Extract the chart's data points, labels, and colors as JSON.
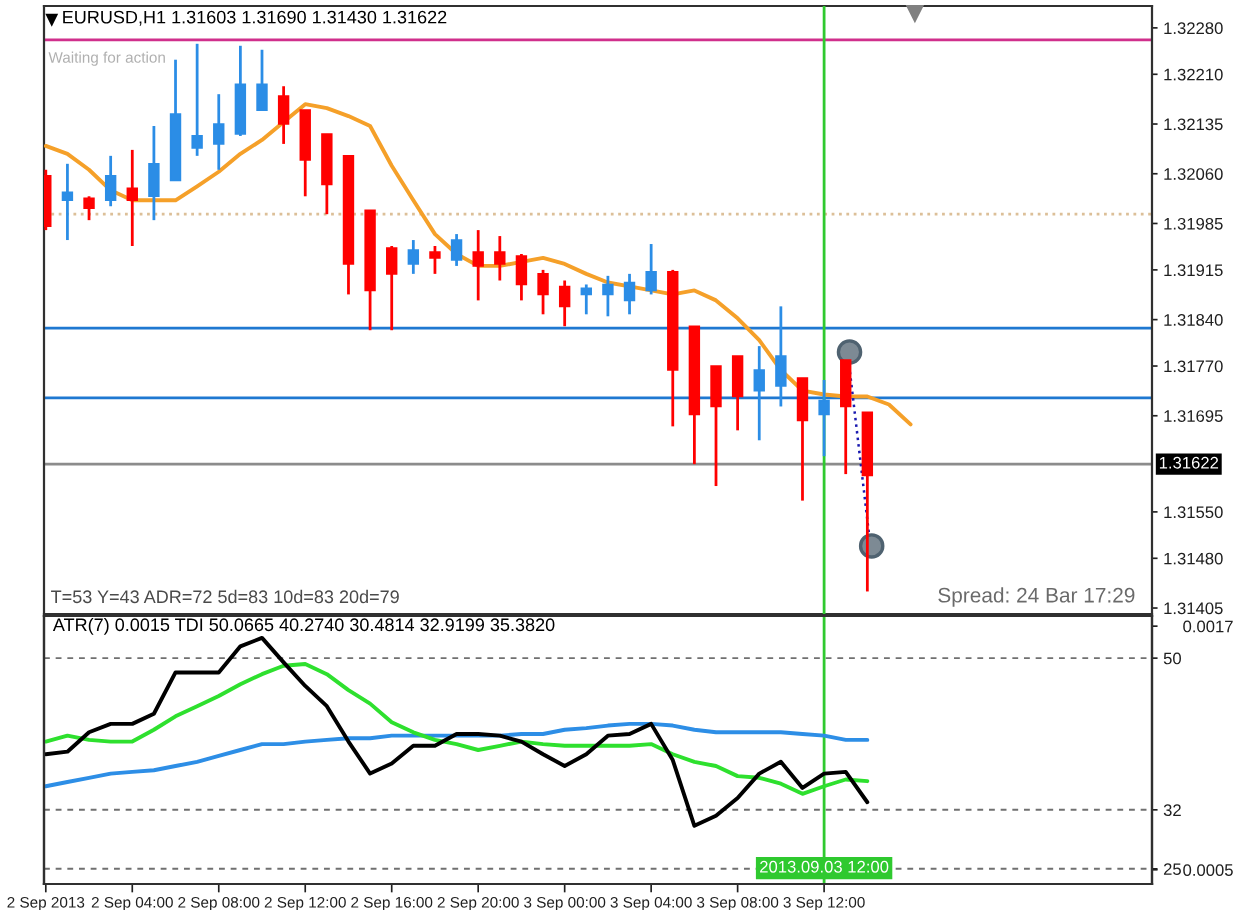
{
  "chart_data": [
    {
      "type": "candlestick",
      "title": "EURUSD,H1 1.31603 1.31690 1.31430 1.31622",
      "annotations": [
        "Waiting for action",
        "T=53 Y=43 ADR=72 5d=83 10d=83 20d=79",
        "Spread: 24 Bar 17:29"
      ],
      "x": [
        "2013-09-02T00:00",
        "2013-09-02T01:00",
        "2013-09-02T02:00",
        "2013-09-02T03:00",
        "2013-09-02T04:00",
        "2013-09-02T05:00",
        "2013-09-02T06:00",
        "2013-09-02T07:00",
        "2013-09-02T08:00",
        "2013-09-02T09:00",
        "2013-09-02T10:00",
        "2013-09-02T11:00",
        "2013-09-02T12:00",
        "2013-09-02T13:00",
        "2013-09-02T14:00",
        "2013-09-02T15:00",
        "2013-09-02T16:00",
        "2013-09-02T17:00",
        "2013-09-02T18:00",
        "2013-09-02T19:00",
        "2013-09-02T20:00",
        "2013-09-02T21:00",
        "2013-09-02T22:00",
        "2013-09-02T23:00",
        "2013-09-03T00:00",
        "2013-09-03T01:00",
        "2013-09-03T02:00",
        "2013-09-03T03:00",
        "2013-09-03T04:00",
        "2013-09-03T05:00",
        "2013-09-03T06:00",
        "2013-09-03T07:00",
        "2013-09-03T08:00",
        "2013-09-03T09:00",
        "2013-09-03T10:00",
        "2013-09-03T11:00",
        "2013-09-03T12:00",
        "2013-09-03T13:00",
        "2013-09-03T14:00"
      ],
      "ohlc": [
        [
          1.32057,
          1.32066,
          1.31975,
          1.31981
        ],
        [
          1.3202,
          1.32075,
          1.3196,
          1.32032
        ],
        [
          1.32023,
          1.32026,
          1.3199,
          1.32008
        ],
        [
          1.3202,
          1.32087,
          1.32011,
          1.32057
        ],
        [
          1.32038,
          1.32096,
          1.31951,
          1.3202
        ],
        [
          1.32026,
          1.32132,
          1.3199,
          1.32075
        ],
        [
          1.3205,
          1.32232,
          1.3205,
          1.3215
        ],
        [
          1.32099,
          1.32256,
          1.32087,
          1.32117
        ],
        [
          1.32105,
          1.3218,
          1.32066,
          1.32135
        ],
        [
          1.3212,
          1.32253,
          1.32117,
          1.32195
        ],
        [
          1.32156,
          1.32247,
          1.32156,
          1.32195
        ],
        [
          1.32177,
          1.32192,
          1.32105,
          1.32135
        ],
        [
          1.32156,
          1.32156,
          1.32026,
          1.32081
        ],
        [
          1.3212,
          1.3212,
          1.31999,
          1.32044
        ],
        [
          1.32087,
          1.32087,
          1.31878,
          1.31924
        ],
        [
          1.32005,
          1.32005,
          1.31824,
          1.31884
        ],
        [
          1.31948,
          1.31951,
          1.31824,
          1.31909
        ],
        [
          1.31924,
          1.3196,
          1.31909,
          1.31945
        ],
        [
          1.31942,
          1.31951,
          1.31909,
          1.31933
        ],
        [
          1.3193,
          1.31969,
          1.31921,
          1.3196
        ],
        [
          1.31942,
          1.31975,
          1.31869,
          1.31921
        ],
        [
          1.31942,
          1.31966,
          1.31899,
          1.31924
        ],
        [
          1.31936,
          1.31939,
          1.31869,
          1.31893
        ],
        [
          1.31909,
          1.31915,
          1.31848,
          1.31878
        ],
        [
          1.3189,
          1.31899,
          1.3183,
          1.3186
        ],
        [
          1.31878,
          1.31893,
          1.31848,
          1.31887
        ],
        [
          1.31878,
          1.31906,
          1.31845,
          1.31893
        ],
        [
          1.31869,
          1.31909,
          1.31848,
          1.31896
        ],
        [
          1.31884,
          1.31954,
          1.31878,
          1.31912
        ],
        [
          1.31912,
          1.31915,
          1.31679,
          1.31764
        ],
        [
          1.3183,
          1.3183,
          1.31622,
          1.31697
        ],
        [
          1.3177,
          1.3177,
          1.31589,
          1.31709
        ],
        [
          1.31785,
          1.31785,
          1.31673,
          1.31724
        ],
        [
          1.31733,
          1.318,
          1.31658,
          1.31764
        ],
        [
          1.3174,
          1.3186,
          1.31709,
          1.31785
        ],
        [
          1.31752,
          1.31752,
          1.31567,
          1.31688
        ],
        [
          1.31697,
          1.31749,
          1.31634,
          1.31718
        ],
        [
          1.31779,
          1.31779,
          1.31607,
          1.31709
        ],
        [
          1.317,
          1.317,
          1.3143,
          1.31605
        ]
      ],
      "colors": [
        "#ff0000",
        "#2b8de6",
        "#ff0000",
        "#2b8de6",
        "#ff0000",
        "#2b8de6",
        "#2b8de6",
        "#2b8de6",
        "#2b8de6",
        "#2b8de6",
        "#2b8de6",
        "#ff0000",
        "#ff0000",
        "#ff0000",
        "#ff0000",
        "#ff0000",
        "#ff0000",
        "#2b8de6",
        "#ff0000",
        "#2b8de6",
        "#ff0000",
        "#ff0000",
        "#ff0000",
        "#ff0000",
        "#ff0000",
        "#2b8de6",
        "#2b8de6",
        "#2b8de6",
        "#2b8de6",
        "#ff0000",
        "#ff0000",
        "#ff0000",
        "#ff0000",
        "#2b8de6",
        "#2b8de6",
        "#ff0000",
        "#2b8de6",
        "#ff0000",
        "#ff0000"
      ],
      "series": [
        {
          "type": "line",
          "color": "#f5a029",
          "x": [
            "2013-09-02T00:00",
            "2013-09-02T01:00",
            "2013-09-02T02:00",
            "2013-09-02T03:00",
            "2013-09-02T04:00",
            "2013-09-02T05:00",
            "2013-09-02T06:00",
            "2013-09-02T07:00",
            "2013-09-02T08:00",
            "2013-09-02T09:00",
            "2013-09-02T10:00",
            "2013-09-02T11:00",
            "2013-09-02T12:00",
            "2013-09-02T13:00",
            "2013-09-02T14:00",
            "2013-09-02T15:00",
            "2013-09-02T16:00",
            "2013-09-02T17:00",
            "2013-09-02T18:00",
            "2013-09-02T19:00",
            "2013-09-02T20:00",
            "2013-09-02T21:00",
            "2013-09-02T22:00",
            "2013-09-02T23:00",
            "2013-09-03T00:00",
            "2013-09-03T01:00",
            "2013-09-03T02:00",
            "2013-09-03T03:00",
            "2013-09-03T04:00",
            "2013-09-03T05:00",
            "2013-09-03T06:00",
            "2013-09-03T07:00",
            "2013-09-03T08:00",
            "2013-09-03T09:00",
            "2013-09-03T10:00",
            "2013-09-03T11:00",
            "2013-09-03T12:00",
            "2013-09-03T13:00",
            "2013-09-03T14:00",
            "2013-09-03T15:00",
            "2013-09-03T16:00"
          ],
          "values": [
            1.32102,
            1.3209,
            1.32066,
            1.32035,
            1.3202,
            1.3202,
            1.3202,
            1.32041,
            1.32063,
            1.3209,
            1.32111,
            1.32138,
            1.32165,
            1.32159,
            1.32147,
            1.32132,
            1.32072,
            1.3202,
            1.31969,
            1.31939,
            1.31921,
            1.31921,
            1.31927,
            1.31933,
            1.31924,
            1.31909,
            1.31896,
            1.3189,
            1.31884,
            1.31878,
            1.31884,
            1.31869,
            1.31842,
            1.31809,
            1.31764,
            1.31733,
            1.31727,
            1.31724,
            1.31724,
            1.31712,
            1.31682
          ]
        }
      ],
      "xlim": [
        "2013-09-01T23:55",
        "2013-09-04T03:10"
      ],
      "ylim": [
        1.31396,
        1.32313
      ],
      "yticks": [
        {
          "value": 1.3228,
          "label": "1.32280"
        },
        {
          "value": 1.3221,
          "label": "1.32210"
        },
        1.32135,
        {
          "value": 1.3206,
          "label": "1.32060"
        },
        1.31985,
        1.31915,
        {
          "value": 1.3184,
          "label": "1.31840"
        },
        {
          "value": 1.3177,
          "label": "1.31770"
        },
        1.31695,
        {
          "value": 1.3155,
          "label": "1.31550"
        },
        {
          "value": 1.3148,
          "label": "1.31480"
        },
        1.31405
      ],
      "tick_labels": "y",
      "ref_lines": [
        {
          "axis": "y",
          "value": 1.32262,
          "color": "#d02f8c"
        },
        {
          "axis": "y",
          "value": 1.31999,
          "color": "#dcbf98",
          "line_style": "dotted"
        },
        {
          "axis": "y",
          "value": 1.31827,
          "color": "#1f78d1"
        },
        {
          "axis": "y",
          "value": 1.31722,
          "color": "#1f78d1"
        },
        {
          "axis": "y",
          "value": 1.31622,
          "label": "1.31622",
          "color": "#8c8c8c"
        },
        {
          "axis": "x",
          "value": "2013-09-03T12:00",
          "color": "#2fc92f"
        }
      ]
    },
    {
      "type": "line",
      "title": "ATR(7) 0.0015 TDI 50.0665 40.2740 30.4814 32.9199 35.3820",
      "x": [
        "2013-09-02T00:00",
        "2013-09-02T01:00",
        "2013-09-02T02:00",
        "2013-09-02T03:00",
        "2013-09-02T04:00",
        "2013-09-02T05:00",
        "2013-09-02T06:00",
        "2013-09-02T07:00",
        "2013-09-02T08:00",
        "2013-09-02T09:00",
        "2013-09-02T10:00",
        "2013-09-02T11:00",
        "2013-09-02T12:00",
        "2013-09-02T13:00",
        "2013-09-02T14:00",
        "2013-09-02T15:00",
        "2013-09-02T16:00",
        "2013-09-02T17:00",
        "2013-09-02T18:00",
        "2013-09-02T19:00",
        "2013-09-02T20:00",
        "2013-09-02T21:00",
        "2013-09-02T22:00",
        "2013-09-02T23:00",
        "2013-09-03T00:00",
        "2013-09-03T01:00",
        "2013-09-03T02:00",
        "2013-09-03T03:00",
        "2013-09-03T04:00",
        "2013-09-03T05:00",
        "2013-09-03T06:00",
        "2013-09-03T07:00",
        "2013-09-03T08:00",
        "2013-09-03T09:00",
        "2013-09-03T10:00",
        "2013-09-03T11:00",
        "2013-09-03T12:00",
        "2013-09-03T13:00",
        "2013-09-03T14:00"
      ],
      "series": [
        {
          "color": "#2d8ee6",
          "values": [
            34.8,
            35.3,
            35.8,
            36.3,
            36.5,
            36.7,
            37.2,
            37.7,
            38.4,
            39.1,
            39.8,
            39.8,
            40.1,
            40.3,
            40.5,
            40.5,
            40.8,
            40.8,
            40.8,
            40.8,
            40.8,
            40.8,
            41.0,
            41.0,
            41.5,
            41.7,
            42.0,
            42.2,
            42.2,
            42.0,
            41.5,
            41.2,
            41.2,
            41.2,
            41.2,
            41.0,
            40.8,
            40.3,
            40.3
          ]
        },
        {
          "color": "#2ee02e",
          "values": [
            40.1,
            40.8,
            40.3,
            40.1,
            40.1,
            41.5,
            43.1,
            44.3,
            45.5,
            46.9,
            48.1,
            49.1,
            49.3,
            48.1,
            46.2,
            44.6,
            42.4,
            41.2,
            40.3,
            39.8,
            39.1,
            39.6,
            40.1,
            39.8,
            39.6,
            39.6,
            39.6,
            39.6,
            39.8,
            38.6,
            37.7,
            37.2,
            36.0,
            35.8,
            35.1,
            33.9,
            34.8,
            35.6,
            35.4
          ]
        },
        {
          "color": "#000000",
          "values": [
            38.6,
            38.9,
            41.2,
            42.2,
            42.2,
            43.4,
            48.3,
            48.3,
            48.3,
            51.4,
            52.4,
            49.5,
            46.7,
            44.3,
            40.1,
            36.3,
            37.5,
            39.6,
            39.6,
            41.0,
            41.0,
            40.8,
            40.1,
            38.6,
            37.2,
            38.6,
            40.8,
            41.0,
            42.2,
            37.9,
            30.1,
            31.3,
            33.4,
            36.3,
            37.7,
            34.6,
            36.3,
            36.5,
            32.9
          ]
        }
      ],
      "xlim": [
        "2013-09-01T23:55",
        "2013-09-04T03:10"
      ],
      "xticks": [
        {
          "value": "2013-09-02T00:00",
          "label": "2 Sep 2013"
        },
        {
          "value": "2013-09-02T04:00",
          "label": "2 Sep 04:00"
        },
        {
          "value": "2013-09-02T08:00",
          "label": "2 Sep 08:00"
        },
        {
          "value": "2013-09-02T12:00",
          "label": "2 Sep 12:00"
        },
        {
          "value": "2013-09-02T16:00",
          "label": "2 Sep 16:00"
        },
        {
          "value": "2013-09-02T20:00",
          "label": "2 Sep 20:00"
        },
        {
          "value": "2013-09-03T00:00",
          "label": "3 Sep 00:00"
        },
        {
          "value": "2013-09-03T04:00",
          "label": "3 Sep 04:00"
        },
        {
          "value": "2013-09-03T08:00",
          "label": "3 Sep 08:00"
        },
        {
          "value": "2013-09-03T12:00",
          "label": "3 Sep 12:00"
        }
      ],
      "ylim": [
        23.2,
        55.0
      ],
      "yticks": [
        50,
        32,
        25
      ],
      "y2lim": [
        0.00043,
        0.00175
      ],
      "y2ticks": [
        0.0017,
        0.0005
      ],
      "grid": "y",
      "ref_lines": [
        {
          "axis": "x",
          "value": "2013-09-03T12:00",
          "label": "2013.09.03 12:00",
          "color": "#2fc92f"
        }
      ]
    }
  ]
}
